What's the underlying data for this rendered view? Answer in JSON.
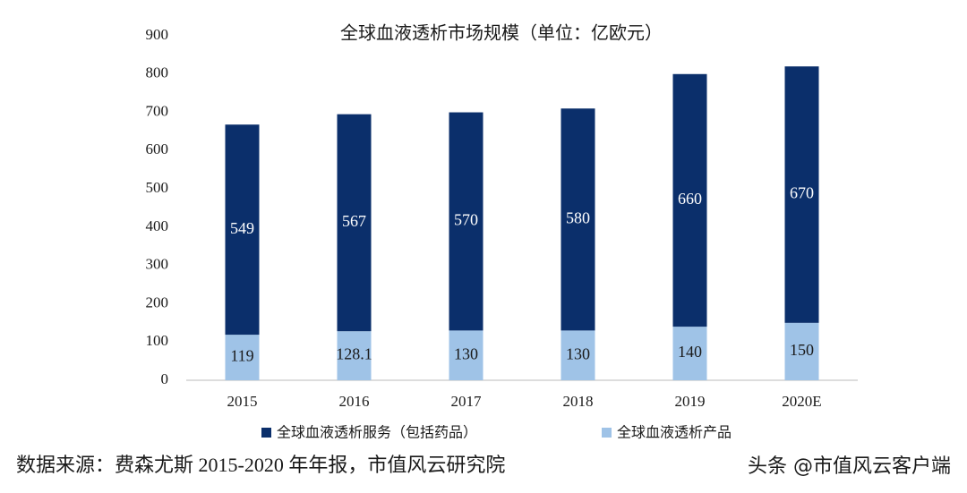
{
  "chart_data": {
    "type": "bar",
    "stacked": true,
    "title": "全球血液透析市场规模（单位：亿欧元）",
    "categories": [
      "2015",
      "2016",
      "2017",
      "2018",
      "2019",
      "2020E"
    ],
    "series": [
      {
        "name": "全球血液透析服务（包括药品）",
        "color": "#0b2f6b",
        "label_color": "#ffffff",
        "values": [
          549,
          567,
          570,
          580,
          660,
          670
        ]
      },
      {
        "name": "全球血液透析产品",
        "color": "#9fc3e7",
        "label_color": "#1a1a1a",
        "values": [
          119,
          128.1,
          130,
          130,
          140,
          150
        ]
      }
    ],
    "ylim": [
      0,
      900
    ],
    "yticks": [
      0,
      100,
      200,
      300,
      400,
      500,
      600,
      700,
      800,
      900
    ],
    "source": "数据来源：费森尤斯 2015-2020 年年报，市值风云研究院",
    "watermark": "头条 @市值风云客户端"
  }
}
